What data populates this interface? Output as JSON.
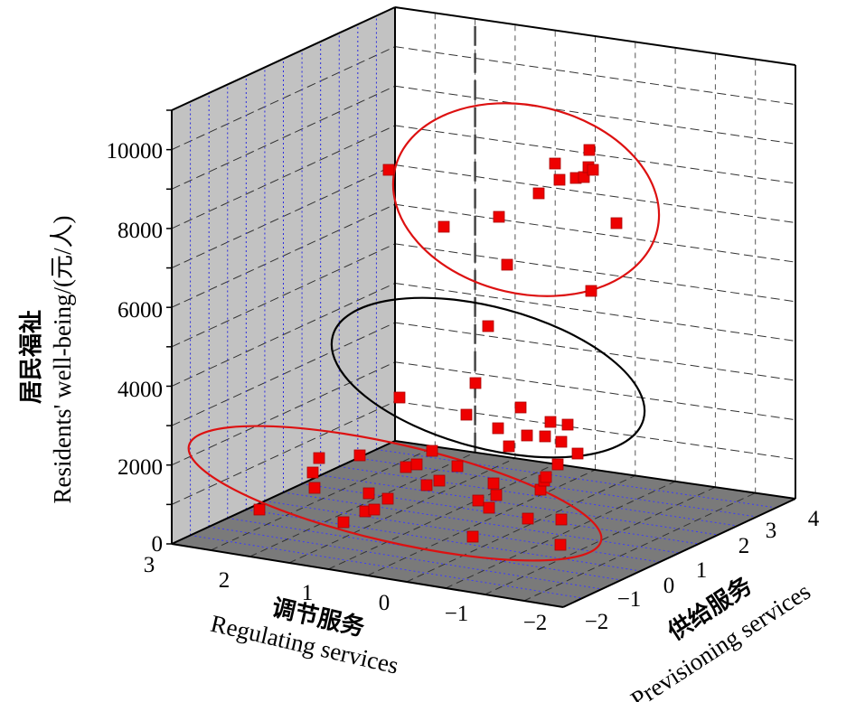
{
  "chart_data": {
    "type": "scatter",
    "title": "",
    "zlabel_cn": "居民福祉",
    "zlabel_en": "Residents' well-being/(元/人)",
    "xlabel_cn": "调节服务",
    "xlabel_en": "Regulating services",
    "ylabel_cn": "供给服务",
    "ylabel_en": "Previsioning services",
    "z_ticks": [
      "0",
      "2000",
      "4000",
      "6000",
      "8000",
      "10000"
    ],
    "x_ticks": [
      "3",
      "2",
      "1",
      "0",
      "−1",
      "−2"
    ],
    "y_ticks": [
      "−2",
      "−1",
      "0",
      "1",
      "2",
      "3",
      "4"
    ],
    "zlim": [
      0,
      11000
    ],
    "grid": true,
    "marker_color": "#ee0000",
    "floor_color": "#7a7a7a",
    "wall_color": "#c2c2c2",
    "clusters": [
      {
        "name": "",
        "ellipse_color": "#dd1111",
        "points": [
          [
            287,
            564
          ],
          [
            353,
            507
          ],
          [
            346,
            523
          ],
          [
            348,
            540
          ],
          [
            380,
            578
          ],
          [
            398,
            504
          ],
          [
            408,
            546
          ],
          [
            404,
            566
          ],
          [
            414,
            564
          ],
          [
            429,
            552
          ],
          [
            449,
            517
          ],
          [
            461,
            514
          ],
          [
            472,
            537
          ],
          [
            478,
            499
          ],
          [
            486,
            532
          ],
          [
            506,
            516
          ],
          [
            523,
            594
          ],
          [
            529,
            554
          ],
          [
            541,
            562
          ],
          [
            546,
            535
          ],
          [
            549,
            548
          ],
          [
            584,
            574
          ],
          [
            598,
            542
          ],
          [
            602,
            532
          ],
          [
            604,
            528
          ],
          [
            621,
            575
          ],
          [
            620,
            603
          ],
          [
            617,
            514
          ]
        ]
      },
      {
        "name": "",
        "ellipse_color": "#000000",
        "points": [
          [
            442,
            440
          ],
          [
            540,
            361
          ],
          [
            526,
            424
          ],
          [
            516,
            459
          ],
          [
            551,
            474
          ],
          [
            563,
            494
          ],
          [
            576,
            451
          ],
          [
            583,
            482
          ],
          [
            603,
            483
          ],
          [
            609,
            467
          ],
          [
            621,
            489
          ],
          [
            628,
            470
          ],
          [
            639,
            502
          ]
        ]
      },
      {
        "name": "",
        "ellipse_color": "#dd1111",
        "points": [
          [
            430,
            188
          ],
          [
            491,
            251
          ],
          [
            552,
            240
          ],
          [
            561,
            293
          ],
          [
            596,
            214
          ],
          [
            614,
            181
          ],
          [
            619,
            199
          ],
          [
            637,
            197
          ],
          [
            646,
            196
          ],
          [
            652,
            166
          ],
          [
            651,
            185
          ],
          [
            656,
            188
          ],
          [
            682,
            247
          ],
          [
            654,
            322
          ]
        ]
      }
    ]
  }
}
